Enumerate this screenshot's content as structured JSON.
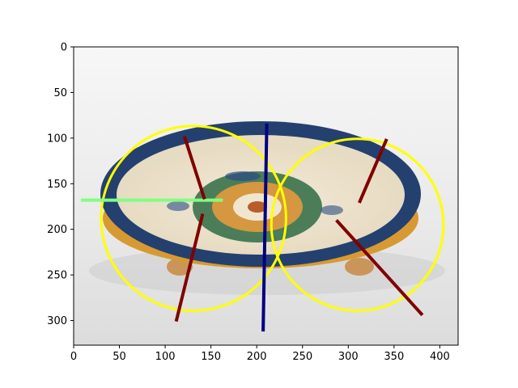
{
  "chart_data": {
    "type": "image_with_overlays",
    "title": "",
    "xlabel": "",
    "ylabel": "",
    "xlim": [
      0,
      420
    ],
    "ylim": [
      327,
      0
    ],
    "y_inverted": true,
    "xticks": [
      0,
      50,
      100,
      150,
      200,
      250,
      300,
      350,
      400
    ],
    "yticks": [
      0,
      50,
      100,
      150,
      200,
      250,
      300
    ],
    "background_image": "photo-of-glazed-ceramic-dish-with-floral-medallion",
    "circles": [
      {
        "cx": 131,
        "cy": 188,
        "r": 101,
        "color": "#ffff00"
      },
      {
        "cx": 310,
        "cy": 195,
        "r": 94,
        "color": "#ffff00"
      }
    ],
    "segments": [
      {
        "x1": 8,
        "y1": 168,
        "x2": 163,
        "y2": 168,
        "color": "#80ff80"
      },
      {
        "x1": 211,
        "y1": 84,
        "x2": 207,
        "y2": 312,
        "color": "#000080"
      },
      {
        "x1": 121,
        "y1": 98,
        "x2": 143,
        "y2": 167,
        "color": "#800000"
      },
      {
        "x1": 141,
        "y1": 183,
        "x2": 112,
        "y2": 301,
        "color": "#800000"
      },
      {
        "x1": 342,
        "y1": 101,
        "x2": 312,
        "y2": 171,
        "color": "#800000"
      },
      {
        "x1": 287,
        "y1": 190,
        "x2": 381,
        "y2": 294,
        "color": "#800000"
      }
    ]
  }
}
